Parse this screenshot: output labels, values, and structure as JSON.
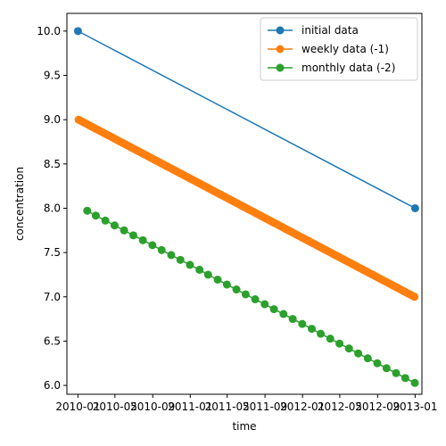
{
  "chart_data": {
    "type": "line",
    "xlabel": "time",
    "ylabel": "concentration",
    "xlim": [
      "2009-11-26",
      "2013-01-23"
    ],
    "ylim": [
      5.9,
      10.2
    ],
    "yticks": [
      "6.0",
      "6.5",
      "7.0",
      "7.5",
      "8.0",
      "8.5",
      "9.0",
      "9.5",
      "10.0"
    ],
    "xticks": [
      {
        "date": "2010-01-01",
        "label": "2010-01"
      },
      {
        "date": "2010-05-01",
        "label": "2010-05"
      },
      {
        "date": "2010-09-01",
        "label": "2010-09"
      },
      {
        "date": "2011-01-01",
        "label": "2011-01"
      },
      {
        "date": "2011-05-01",
        "label": "2011-05"
      },
      {
        "date": "2011-09-01",
        "label": "2011-09"
      },
      {
        "date": "2012-01-01",
        "label": "2012-01"
      },
      {
        "date": "2012-05-01",
        "label": "2012-05"
      },
      {
        "date": "2012-09-01",
        "label": "2012-09"
      },
      {
        "date": "2013-01-01",
        "label": "2013-01"
      }
    ],
    "legend_position": "top-right",
    "series": [
      {
        "name": "initial data",
        "color": "#1f77b4",
        "x": [
          "2010-01-01",
          "2013-01-01"
        ],
        "y": [
          10.0,
          8.0
        ]
      },
      {
        "name": "weekly data (-1)",
        "color": "#ff7f0e",
        "x": [
          "2010-01-03",
          "2010-01-10",
          "2010-01-17",
          "2010-01-24",
          "2010-01-31",
          "2010-02-07",
          "2010-02-14",
          "2010-02-21",
          "2010-02-28",
          "2010-03-07",
          "2010-03-14",
          "2010-03-21",
          "2010-03-28",
          "2010-04-04",
          "2010-04-11",
          "2010-04-18",
          "2010-04-25",
          "2010-05-02",
          "2010-05-09",
          "2010-05-16",
          "2010-05-23",
          "2010-05-30",
          "2010-06-06",
          "2010-06-13",
          "2010-06-20",
          "2010-06-27",
          "2010-07-04",
          "2010-07-11",
          "2010-07-18",
          "2010-07-25",
          "2010-08-01",
          "2010-08-08",
          "2010-08-15",
          "2010-08-22",
          "2010-08-29",
          "2010-09-05",
          "2010-09-12",
          "2010-09-19",
          "2010-09-26",
          "2010-10-03",
          "2010-10-10",
          "2010-10-17",
          "2010-10-24",
          "2010-10-31",
          "2010-11-07",
          "2010-11-14",
          "2010-11-21",
          "2010-11-28",
          "2010-12-05",
          "2010-12-12",
          "2010-12-19",
          "2010-12-26",
          "2011-01-02",
          "2011-01-09",
          "2011-01-16",
          "2011-01-23",
          "2011-01-30",
          "2011-02-06",
          "2011-02-13",
          "2011-02-20",
          "2011-02-27",
          "2011-03-06",
          "2011-03-13",
          "2011-03-20",
          "2011-03-27",
          "2011-04-03",
          "2011-04-10",
          "2011-04-17",
          "2011-04-24",
          "2011-05-01",
          "2011-05-08",
          "2011-05-15",
          "2011-05-22",
          "2011-05-29",
          "2011-06-05",
          "2011-06-12",
          "2011-06-19",
          "2011-06-26",
          "2011-07-03",
          "2011-07-10",
          "2011-07-17",
          "2011-07-24",
          "2011-07-31",
          "2011-08-07",
          "2011-08-14",
          "2011-08-21",
          "2011-08-28",
          "2011-09-04",
          "2011-09-11",
          "2011-09-18",
          "2011-09-25",
          "2011-10-02",
          "2011-10-09",
          "2011-10-16",
          "2011-10-23",
          "2011-10-30",
          "2011-11-06",
          "2011-11-13",
          "2011-11-20",
          "2011-11-27",
          "2011-12-04",
          "2011-12-11",
          "2011-12-18",
          "2011-12-25",
          "2012-01-01",
          "2012-01-08",
          "2012-01-15",
          "2012-01-22",
          "2012-01-29",
          "2012-02-05",
          "2012-02-12",
          "2012-02-19",
          "2012-02-26",
          "2012-03-04",
          "2012-03-11",
          "2012-03-18",
          "2012-03-25",
          "2012-04-01",
          "2012-04-08",
          "2012-04-15",
          "2012-04-22",
          "2012-04-29",
          "2012-05-06",
          "2012-05-13",
          "2012-05-20",
          "2012-05-27",
          "2012-06-03",
          "2012-06-10",
          "2012-06-17",
          "2012-06-24",
          "2012-07-01",
          "2012-07-08",
          "2012-07-15",
          "2012-07-22",
          "2012-07-29",
          "2012-08-05",
          "2012-08-12",
          "2012-08-19",
          "2012-08-26",
          "2012-09-02",
          "2012-09-09",
          "2012-09-16",
          "2012-09-23",
          "2012-09-30",
          "2012-10-07",
          "2012-10-14",
          "2012-10-21",
          "2012-10-28",
          "2012-11-04",
          "2012-11-11",
          "2012-11-18",
          "2012-11-25",
          "2012-12-02",
          "2012-12-09",
          "2012-12-16",
          "2012-12-23",
          "2012-12-30"
        ],
        "y": [
          9.0,
          8.987,
          8.974,
          8.962,
          8.949,
          8.936,
          8.923,
          8.91,
          8.897,
          8.885,
          8.872,
          8.859,
          8.846,
          8.833,
          8.821,
          8.808,
          8.795,
          8.782,
          8.769,
          8.756,
          8.744,
          8.731,
          8.718,
          8.705,
          8.692,
          8.679,
          8.667,
          8.654,
          8.641,
          8.628,
          8.615,
          8.603,
          8.59,
          8.577,
          8.564,
          8.551,
          8.538,
          8.526,
          8.513,
          8.5,
          8.487,
          8.474,
          8.462,
          8.449,
          8.436,
          8.423,
          8.41,
          8.397,
          8.385,
          8.372,
          8.359,
          8.346,
          8.333,
          8.321,
          8.308,
          8.295,
          8.282,
          8.269,
          8.256,
          8.244,
          8.231,
          8.218,
          8.205,
          8.192,
          8.179,
          8.167,
          8.154,
          8.141,
          8.128,
          8.115,
          8.103,
          8.09,
          8.077,
          8.064,
          8.051,
          8.038,
          8.026,
          8.013,
          8.0,
          7.987,
          7.974,
          7.962,
          7.949,
          7.936,
          7.923,
          7.91,
          7.897,
          7.885,
          7.872,
          7.859,
          7.846,
          7.833,
          7.821,
          7.808,
          7.795,
          7.782,
          7.769,
          7.756,
          7.744,
          7.731,
          7.718,
          7.705,
          7.692,
          7.679,
          7.667,
          7.654,
          7.641,
          7.628,
          7.615,
          7.603,
          7.59,
          7.577,
          7.564,
          7.551,
          7.538,
          7.526,
          7.513,
          7.5,
          7.487,
          7.474,
          7.462,
          7.449,
          7.436,
          7.423,
          7.41,
          7.397,
          7.385,
          7.372,
          7.359,
          7.346,
          7.333,
          7.321,
          7.308,
          7.295,
          7.282,
          7.269,
          7.256,
          7.244,
          7.231,
          7.218,
          7.205,
          7.192,
          7.179,
          7.167,
          7.154,
          7.141,
          7.128,
          7.115,
          7.103,
          7.09,
          7.077,
          7.064,
          7.051,
          7.038,
          7.026,
          7.013,
          7.0
        ]
      },
      {
        "name": "monthly data (-2)",
        "color": "#2ca02c",
        "x": [
          "2010-01-31",
          "2010-02-28",
          "2010-03-31",
          "2010-04-30",
          "2010-05-31",
          "2010-06-30",
          "2010-07-31",
          "2010-08-31",
          "2010-09-30",
          "2010-10-31",
          "2010-11-30",
          "2010-12-31",
          "2011-01-31",
          "2011-02-28",
          "2011-03-31",
          "2011-04-30",
          "2011-05-31",
          "2011-06-30",
          "2011-07-31",
          "2011-08-31",
          "2011-09-30",
          "2011-10-31",
          "2011-11-30",
          "2011-12-31",
          "2012-01-31",
          "2012-02-29",
          "2012-03-31",
          "2012-04-30",
          "2012-05-31",
          "2012-06-30",
          "2012-07-31",
          "2012-08-31",
          "2012-09-30",
          "2012-10-31",
          "2012-11-30",
          "2012-12-31"
        ],
        "y": [
          7.972,
          7.917,
          7.861,
          7.806,
          7.75,
          7.694,
          7.639,
          7.583,
          7.528,
          7.472,
          7.417,
          7.361,
          7.306,
          7.25,
          7.194,
          7.139,
          7.083,
          7.028,
          6.972,
          6.917,
          6.861,
          6.806,
          6.75,
          6.694,
          6.639,
          6.583,
          6.528,
          6.472,
          6.417,
          6.361,
          6.306,
          6.25,
          6.194,
          6.139,
          6.083,
          6.028
        ]
      }
    ]
  }
}
